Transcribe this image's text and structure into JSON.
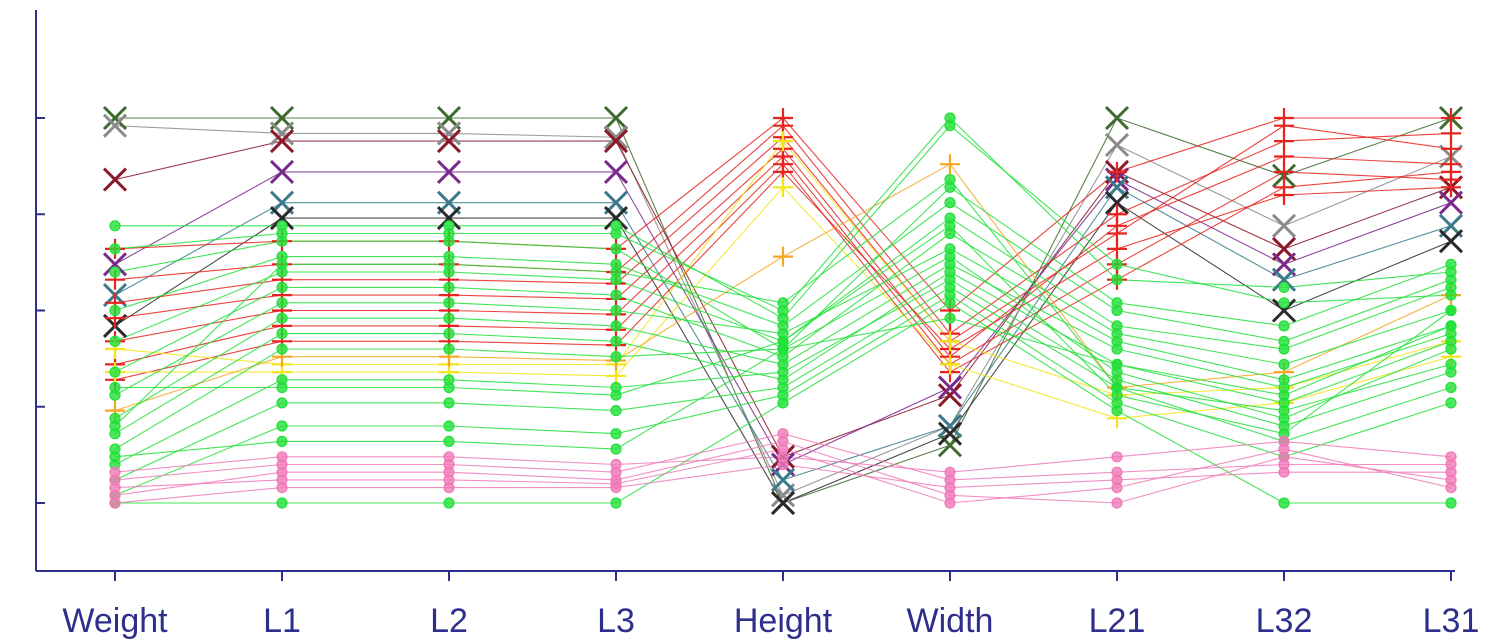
{
  "chart_data": {
    "type": "parallel-coordinates",
    "title": "",
    "axes": [
      "Weight",
      "L1",
      "L2",
      "L3",
      "Height",
      "Width",
      "L21",
      "L32",
      "L31"
    ],
    "ylim": [
      0,
      1
    ],
    "y_ticks": [
      0,
      0.25,
      0.5,
      0.75,
      1.0
    ],
    "grid": false,
    "legend": "none",
    "colors": {
      "axis": "#2e2e8c",
      "green": "#22e03a",
      "pink": "#f07ab8",
      "red": "#e8231f",
      "yellow": "#f2e51a",
      "orange": "#f5a623",
      "darkgreen": "#3d6b2e",
      "gray": "#8a8a8a",
      "purple": "#7a2a8a",
      "teal": "#3a7a8a",
      "darkred": "#8a1a2a",
      "black": "#2a2a2a"
    },
    "series": [
      {
        "color": "darkgreen",
        "marker": "x",
        "values": [
          1.0,
          1.0,
          1.0,
          1.0,
          0.0,
          0.15,
          1.0,
          0.85,
          1.0
        ]
      },
      {
        "color": "gray",
        "marker": "x",
        "values": [
          0.98,
          0.96,
          0.96,
          0.95,
          0.02,
          0.2,
          0.93,
          0.72,
          0.9
        ]
      },
      {
        "color": "darkred",
        "marker": "x",
        "values": [
          0.84,
          0.94,
          0.94,
          0.94,
          0.12,
          0.28,
          0.86,
          0.66,
          0.82
        ]
      },
      {
        "color": "purple",
        "marker": "x",
        "values": [
          0.62,
          0.86,
          0.86,
          0.86,
          0.1,
          0.3,
          0.84,
          0.62,
          0.78
        ]
      },
      {
        "color": "teal",
        "marker": "x",
        "values": [
          0.54,
          0.78,
          0.78,
          0.78,
          0.06,
          0.2,
          0.82,
          0.58,
          0.72
        ]
      },
      {
        "color": "black",
        "marker": "x",
        "values": [
          0.46,
          0.74,
          0.74,
          0.74,
          0.0,
          0.18,
          0.78,
          0.5,
          0.68
        ]
      },
      {
        "color": "red",
        "marker": "+",
        "values": [
          0.66,
          0.68,
          0.68,
          0.66,
          1.0,
          0.5,
          0.86,
          1.0,
          1.0
        ]
      },
      {
        "color": "red",
        "marker": "+",
        "values": [
          0.58,
          0.62,
          0.62,
          0.6,
          0.98,
          0.44,
          0.75,
          0.94,
          0.96
        ]
      },
      {
        "color": "red",
        "marker": "+",
        "values": [
          0.52,
          0.58,
          0.58,
          0.57,
          0.95,
          0.42,
          0.7,
          0.98,
          0.92
        ]
      },
      {
        "color": "red",
        "marker": "+",
        "values": [
          0.48,
          0.54,
          0.54,
          0.53,
          0.92,
          0.38,
          0.72,
          0.9,
          0.88
        ]
      },
      {
        "color": "red",
        "marker": "+",
        "values": [
          0.42,
          0.5,
          0.5,
          0.49,
          0.9,
          0.36,
          0.62,
          0.86,
          0.84
        ]
      },
      {
        "color": "red",
        "marker": "+",
        "values": [
          0.36,
          0.46,
          0.46,
          0.45,
          0.88,
          0.34,
          0.58,
          0.82,
          0.86
        ]
      },
      {
        "color": "red",
        "marker": "+",
        "values": [
          0.32,
          0.42,
          0.42,
          0.41,
          0.86,
          0.4,
          0.66,
          0.8,
          0.82
        ]
      },
      {
        "color": "yellow",
        "marker": "+",
        "values": [
          0.4,
          0.36,
          0.36,
          0.36,
          0.94,
          0.42,
          0.28,
          0.3,
          0.42
        ]
      },
      {
        "color": "yellow",
        "marker": "+",
        "values": [
          0.34,
          0.34,
          0.34,
          0.33,
          0.82,
          0.36,
          0.22,
          0.26,
          0.38
        ]
      },
      {
        "color": "orange",
        "marker": "+",
        "values": [
          0.24,
          0.38,
          0.38,
          0.37,
          0.64,
          0.88,
          0.3,
          0.34,
          0.54
        ]
      },
      {
        "color": "green",
        "marker": "o",
        "values": [
          0.72,
          0.72,
          0.72,
          0.72,
          0.48,
          0.98,
          0.62,
          0.52,
          0.54
        ]
      },
      {
        "color": "green",
        "marker": "o",
        "values": [
          0.66,
          0.7,
          0.7,
          0.7,
          0.5,
          1.0,
          0.58,
          0.56,
          0.6
        ]
      },
      {
        "color": "green",
        "marker": "o",
        "values": [
          0.6,
          0.68,
          0.68,
          0.66,
          0.4,
          0.82,
          0.52,
          0.46,
          0.62
        ]
      },
      {
        "color": "green",
        "marker": "o",
        "values": [
          0.5,
          0.64,
          0.64,
          0.62,
          0.46,
          0.78,
          0.5,
          0.42,
          0.58
        ]
      },
      {
        "color": "green",
        "marker": "o",
        "values": [
          0.42,
          0.6,
          0.6,
          0.58,
          0.42,
          0.74,
          0.46,
          0.4,
          0.56
        ]
      },
      {
        "color": "green",
        "marker": "o",
        "values": [
          0.34,
          0.56,
          0.56,
          0.54,
          0.38,
          0.7,
          0.44,
          0.36,
          0.5
        ]
      },
      {
        "color": "green",
        "marker": "o",
        "values": [
          0.28,
          0.52,
          0.52,
          0.5,
          0.44,
          0.66,
          0.42,
          0.32,
          0.46
        ]
      },
      {
        "color": "green",
        "marker": "o",
        "values": [
          0.22,
          0.48,
          0.48,
          0.46,
          0.36,
          0.62,
          0.4,
          0.3,
          0.44
        ]
      },
      {
        "color": "green",
        "marker": "o",
        "values": [
          0.18,
          0.44,
          0.44,
          0.42,
          0.32,
          0.6,
          0.36,
          0.26,
          0.42
        ]
      },
      {
        "color": "green",
        "marker": "o",
        "values": [
          0.14,
          0.4,
          0.4,
          0.38,
          0.4,
          0.64,
          0.34,
          0.22,
          0.4
        ]
      },
      {
        "color": "green",
        "marker": "o",
        "values": [
          0.1,
          0.32,
          0.32,
          0.3,
          0.34,
          0.58,
          0.32,
          0.2,
          0.34
        ]
      },
      {
        "color": "green",
        "marker": "o",
        "values": [
          0.06,
          0.26,
          0.26,
          0.24,
          0.3,
          0.56,
          0.3,
          0.16,
          0.3
        ]
      },
      {
        "color": "green",
        "marker": "o",
        "values": [
          0.02,
          0.2,
          0.2,
          0.18,
          0.28,
          0.54,
          0.26,
          0.12,
          0.26
        ]
      },
      {
        "color": "green",
        "marker": "o",
        "values": [
          0.0,
          0.0,
          0.0,
          0.0,
          0.26,
          0.52,
          0.24,
          0.0,
          0.0
        ]
      },
      {
        "color": "green",
        "marker": "o",
        "values": [
          0.12,
          0.16,
          0.16,
          0.14,
          0.4,
          0.48,
          0.36,
          0.28,
          0.46
        ]
      },
      {
        "color": "green",
        "marker": "o",
        "values": [
          0.3,
          0.3,
          0.3,
          0.28,
          0.42,
          0.72,
          0.28,
          0.18,
          0.5
        ]
      },
      {
        "color": "green",
        "marker": "o",
        "values": [
          0.2,
          0.62,
          0.62,
          0.6,
          0.52,
          0.84,
          0.3,
          0.24,
          0.36
        ]
      },
      {
        "color": "pink",
        "marker": "o",
        "values": [
          0.02,
          0.08,
          0.08,
          0.06,
          0.16,
          0.02,
          0.0,
          0.12,
          0.06
        ]
      },
      {
        "color": "pink",
        "marker": "o",
        "values": [
          0.04,
          0.06,
          0.06,
          0.05,
          0.14,
          0.0,
          0.04,
          0.14,
          0.04
        ]
      },
      {
        "color": "pink",
        "marker": "o",
        "values": [
          0.06,
          0.1,
          0.1,
          0.08,
          0.18,
          0.06,
          0.08,
          0.1,
          0.1
        ]
      },
      {
        "color": "pink",
        "marker": "o",
        "values": [
          0.08,
          0.12,
          0.12,
          0.1,
          0.12,
          0.08,
          0.12,
          0.16,
          0.12
        ]
      },
      {
        "color": "pink",
        "marker": "o",
        "values": [
          0.0,
          0.04,
          0.04,
          0.04,
          0.1,
          0.04,
          0.06,
          0.08,
          0.08
        ]
      }
    ]
  }
}
